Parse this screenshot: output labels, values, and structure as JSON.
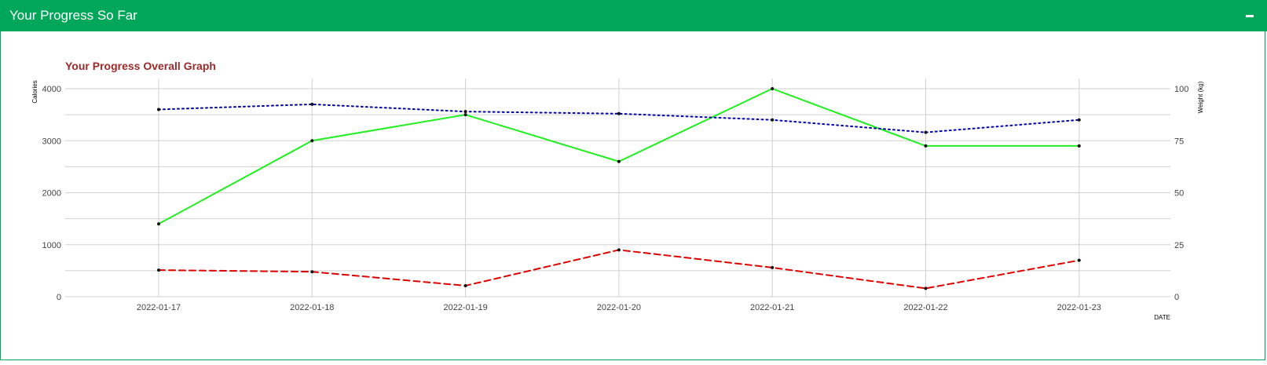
{
  "panel": {
    "title": "Your Progress So Far",
    "collapse_icon": "minus-icon"
  },
  "colors": {
    "header": "#00a65a",
    "calories_line": "#22ee22",
    "weight_upper_line": "#0000aa",
    "weight_lower_line": "#dd0000",
    "chart_title": "#9a2a2a",
    "grid": "#d0d0d0"
  },
  "chart_data": {
    "type": "line",
    "title": "Your Progress Overall Graph",
    "xlabel": "DATE",
    "ylabel_left": "Calories",
    "ylabel_right": "Weight (kg)",
    "ylim_left": [
      0,
      4000
    ],
    "ylim_right": [
      0,
      100
    ],
    "yticks_left": [
      "0",
      "1000",
      "2000",
      "3000",
      "4000"
    ],
    "yticks_right": [
      "0",
      "25",
      "50",
      "75",
      "100"
    ],
    "grid": true,
    "categories": [
      "2022-01-17",
      "2022-01-18",
      "2022-01-19",
      "2022-01-20",
      "2022-01-21",
      "2022-01-22",
      "2022-01-23"
    ],
    "series": [
      {
        "axis": "left",
        "style": "solid",
        "values": [
          1400,
          3000,
          3500,
          2600,
          4000,
          2900,
          2900
        ]
      },
      {
        "axis": "right",
        "style": "dotted",
        "values": [
          90,
          92.5,
          89,
          88,
          85,
          79,
          85
        ]
      },
      {
        "axis": "right",
        "style": "dashed",
        "values": [
          12.8,
          12,
          5.3,
          22.5,
          14,
          4,
          17.5
        ]
      }
    ]
  }
}
